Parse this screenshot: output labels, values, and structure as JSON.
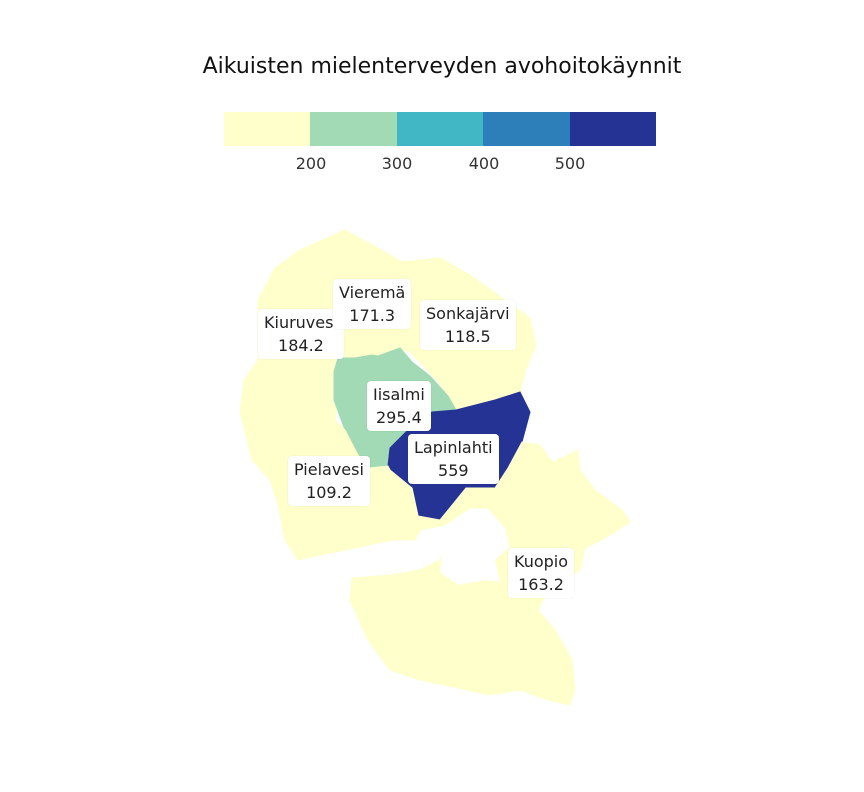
{
  "title": "Aikuisten mielenterveyden avohoitokäynnit",
  "legend": {
    "colors": [
      "#ffffcc",
      "#a1dab4",
      "#41b6c4",
      "#2c7fb8",
      "#253494"
    ],
    "ticks": [
      "200",
      "300",
      "400",
      "500"
    ]
  },
  "regions": [
    {
      "name": "Kiuruvesi",
      "value": "184.2",
      "color": "#ffffcc"
    },
    {
      "name": "Vieremä",
      "value": "171.3",
      "color": "#ffffcc"
    },
    {
      "name": "Sonkajärvi",
      "value": "118.5",
      "color": "#ffffcc"
    },
    {
      "name": "Iisalmi",
      "value": "295.4",
      "color": "#a1dab4"
    },
    {
      "name": "Lapinlahti",
      "value": "559",
      "color": "#253494"
    },
    {
      "name": "Pielavesi",
      "value": "109.2",
      "color": "#ffffcc"
    },
    {
      "name": "Kuopio",
      "value": "163.2",
      "color": "#ffffcc"
    }
  ]
}
